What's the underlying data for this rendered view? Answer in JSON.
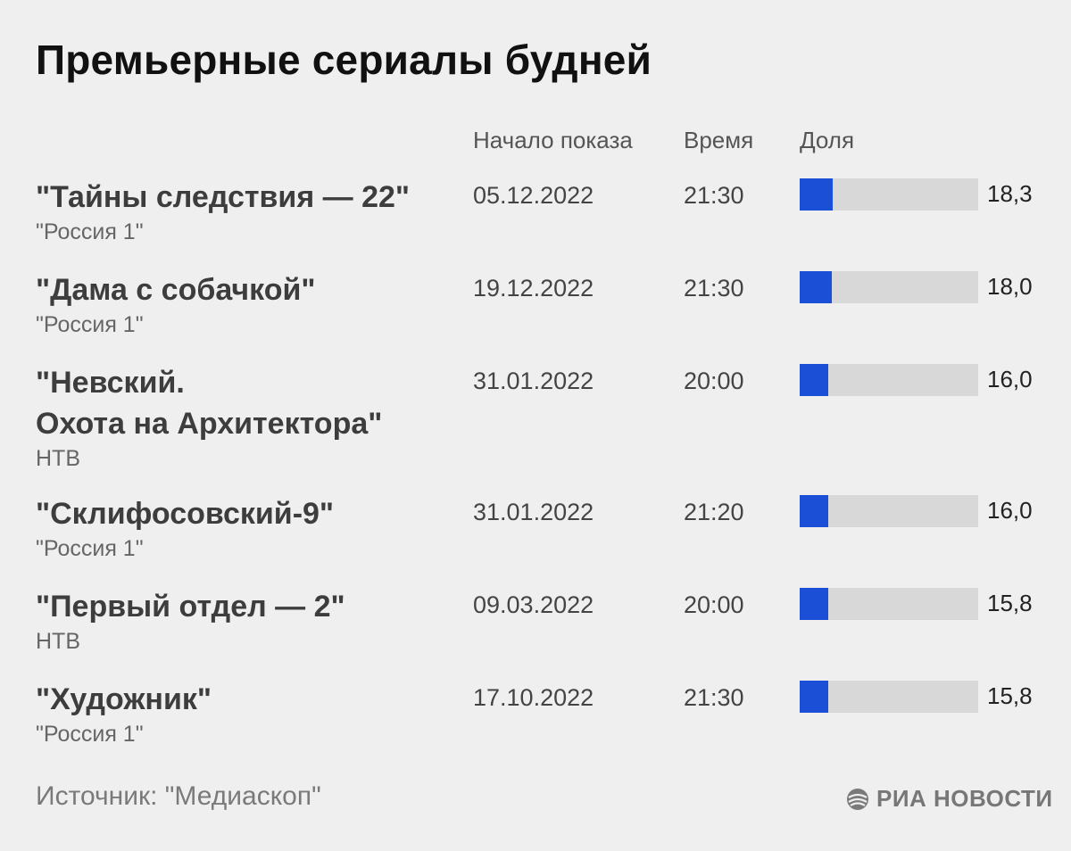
{
  "title": "Премьерные сериалы будней",
  "columns": {
    "start": "Начало показа",
    "time": "Время",
    "share": "Доля"
  },
  "colors": {
    "bar": "#1a4fd6",
    "track": "#d8d8d8",
    "background": "#efefef"
  },
  "chart_data": {
    "type": "table",
    "share_scale_max": 100,
    "rows": [
      {
        "title": "\"Тайны следствия — 22\"",
        "channel": "\"Россия 1\"",
        "start": "05.12.2022",
        "time": "21:30",
        "share": 18.3,
        "share_label": "18,3"
      },
      {
        "title": "\"Дама с собачкой\"",
        "channel": "\"Россия 1\"",
        "start": "19.12.2022",
        "time": "21:30",
        "share": 18.0,
        "share_label": "18,0"
      },
      {
        "title": "\"Невский.\nОхота на Архитектора\"",
        "channel": "НТВ",
        "start": "31.01.2022",
        "time": "20:00",
        "share": 16.0,
        "share_label": "16,0"
      },
      {
        "title": "\"Склифосовский-9\"",
        "channel": "\"Россия 1\"",
        "start": "31.01.2022",
        "time": "21:20",
        "share": 16.0,
        "share_label": "16,0"
      },
      {
        "title": "\"Первый отдел — 2\"",
        "channel": "НТВ",
        "start": "09.03.2022",
        "time": "20:00",
        "share": 15.8,
        "share_label": "15,8"
      },
      {
        "title": "\"Художник\"",
        "channel": "\"Россия 1\"",
        "start": "17.10.2022",
        "time": "21:30",
        "share": 15.8,
        "share_label": "15,8"
      }
    ]
  },
  "source": "Источник: \"Медиаскоп\"",
  "logo": {
    "text": "РИА НОВОСТИ",
    "icon": "ria-novosti-logo-icon"
  }
}
